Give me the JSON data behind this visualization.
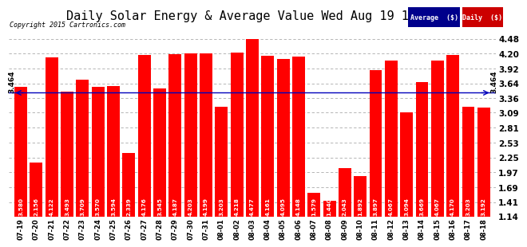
{
  "title": "Daily Solar Energy & Average Value Wed Aug 19 19:55",
  "copyright": "Copyright 2015 Cartronics.com",
  "categories": [
    "07-19",
    "07-20",
    "07-21",
    "07-22",
    "07-23",
    "07-24",
    "07-25",
    "07-26",
    "07-27",
    "07-28",
    "07-29",
    "07-30",
    "07-31",
    "08-01",
    "08-02",
    "08-03",
    "08-04",
    "08-05",
    "08-06",
    "08-07",
    "08-08",
    "08-09",
    "08-10",
    "08-11",
    "08-12",
    "08-13",
    "08-14",
    "08-15",
    "08-16",
    "08-17",
    "08-18"
  ],
  "values": [
    3.58,
    2.156,
    4.122,
    3.493,
    3.709,
    3.57,
    3.594,
    2.339,
    4.176,
    3.545,
    4.187,
    4.203,
    4.199,
    3.203,
    4.218,
    4.477,
    4.161,
    4.095,
    4.148,
    1.579,
    1.44,
    2.043,
    1.892,
    3.897,
    4.067,
    3.094,
    3.669,
    4.067,
    4.17,
    3.203,
    3.192
  ],
  "average": 3.464,
  "bar_color": "#ff0000",
  "avg_line_color": "#0000bb",
  "ylim_min": 1.14,
  "ylim_max": 4.76,
  "yticks": [
    1.14,
    1.41,
    1.69,
    1.97,
    2.25,
    2.53,
    2.81,
    3.09,
    3.36,
    3.64,
    3.92,
    4.2,
    4.48
  ],
  "bg_color": "#ffffff",
  "plot_bg_color": "#ffffff",
  "grid_color": "#aaaaaa",
  "title_fontsize": 11,
  "bar_bottom": 1.14,
  "legend_avg_color": "#00008b",
  "legend_daily_color": "#cc0000"
}
